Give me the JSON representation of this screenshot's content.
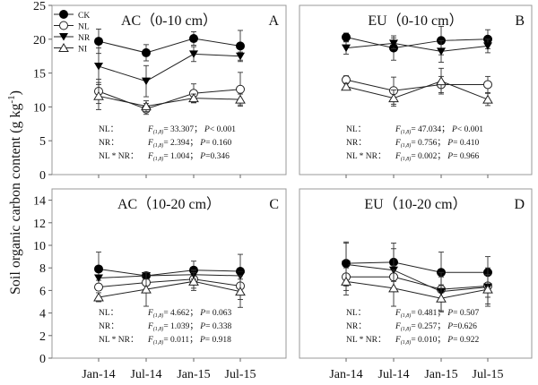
{
  "ylabel": "Soil organic carbon content (g kg",
  "ylabel_sup": "-1",
  "ylabel_end": ")",
  "legend": {
    "position": "top-left of panel A"
  },
  "chart_data": [
    {
      "type": "line",
      "panel": "A",
      "title": "AC（0-10 cm）",
      "letter": "A",
      "categories": [
        "Jan-14",
        "Jul-14",
        "Jan-15",
        "Jul-15"
      ],
      "ylim": [
        0,
        25
      ],
      "yticks": [
        0,
        5,
        10,
        15,
        20,
        25
      ],
      "show_xticklabels": false,
      "legend": true,
      "series": [
        {
          "name": "CK",
          "marker": "filled-circle",
          "values": [
            19.7,
            18.0,
            20.1,
            19.0
          ],
          "errors": [
            1.8,
            1.2,
            1.0,
            2.3
          ]
        },
        {
          "name": "NL",
          "marker": "open-circle",
          "values": [
            12.3,
            9.7,
            12.0,
            12.6
          ],
          "errors": [
            1.8,
            0.8,
            1.4,
            2.5
          ]
        },
        {
          "name": "NR",
          "marker": "filled-triangle-down",
          "values": [
            16.0,
            13.8,
            17.8,
            17.5
          ],
          "errors": [
            2.7,
            2.3,
            1.1,
            0.6
          ]
        },
        {
          "name": "NI",
          "marker": "open-triangle-up",
          "values": [
            11.6,
            10.1,
            11.3,
            11.1
          ],
          "errors": [
            2.0,
            0.8,
            0.6,
            0.8
          ]
        }
      ],
      "stats": [
        {
          "term": "NL：",
          "f": "= 33.307；",
          "p": "< 0.001"
        },
        {
          "term": "NR：",
          "f": "= 2.394；",
          "p": "= 0.160"
        },
        {
          "term": "NL * NR：",
          "f": "= 1.004；",
          "p": "=0.346"
        }
      ]
    },
    {
      "type": "line",
      "panel": "B",
      "title": "EU（0-10 cm）",
      "letter": "B",
      "categories": [
        "Jan-14",
        "Jul-14",
        "Jan-15",
        "Jul-15"
      ],
      "ylim": [
        0,
        25
      ],
      "yticks": [],
      "show_xticklabels": false,
      "legend": false,
      "series": [
        {
          "name": "CK",
          "marker": "filled-circle",
          "values": [
            20.3,
            18.7,
            19.8,
            20.0
          ],
          "errors": [
            0.6,
            1.8,
            2.1,
            1.4
          ]
        },
        {
          "name": "NL",
          "marker": "open-circle",
          "values": [
            14.0,
            12.4,
            13.3,
            13.3
          ],
          "errors": [
            0.6,
            2.0,
            1.2,
            1.2
          ]
        },
        {
          "name": "NR",
          "marker": "filled-triangle-down",
          "values": [
            18.7,
            19.4,
            18.2,
            19.0
          ],
          "errors": [
            0.9,
            0.8,
            1.6,
            1.0
          ]
        },
        {
          "name": "NI",
          "marker": "open-triangle-up",
          "values": [
            13.0,
            11.3,
            13.8,
            11.1
          ],
          "errors": [
            0.5,
            1.2,
            1.9,
            0.9
          ]
        }
      ],
      "stats": [
        {
          "term": "NL：",
          "f": "= 47.034；",
          "p": "< 0.001"
        },
        {
          "term": "NR：",
          "f": "= 0.756；",
          "p": "= 0.410"
        },
        {
          "term": "NL * NR：",
          "f": "= 0.002；",
          "p": "= 0.966"
        }
      ]
    },
    {
      "type": "line",
      "panel": "C",
      "title": "AC（10-20 cm）",
      "letter": "C",
      "categories": [
        "Jan-14",
        "Jul-14",
        "Jan-15",
        "Jul-15"
      ],
      "ylim": [
        0,
        15
      ],
      "yticks": [
        0,
        2,
        4,
        6,
        8,
        10,
        12,
        14
      ],
      "show_xticklabels": true,
      "legend": false,
      "series": [
        {
          "name": "CK",
          "marker": "filled-circle",
          "values": [
            7.9,
            7.3,
            7.8,
            7.7
          ],
          "errors": [
            1.5,
            0.3,
            0.8,
            1.5
          ]
        },
        {
          "name": "NL",
          "marker": "open-circle",
          "values": [
            6.3,
            6.7,
            7.0,
            6.4
          ],
          "errors": [
            0.3,
            0.8,
            0.8,
            1.2
          ]
        },
        {
          "name": "NR",
          "marker": "filled-triangle-down",
          "values": [
            7.1,
            7.3,
            7.4,
            7.3
          ],
          "errors": [
            0.2,
            0.3,
            0.4,
            0.3
          ]
        },
        {
          "name": "NI",
          "marker": "open-triangle-up",
          "values": [
            5.4,
            6.1,
            6.8,
            5.9
          ],
          "errors": [
            0.4,
            1.5,
            0.8,
            1.4
          ]
        }
      ],
      "stats": [
        {
          "term": "NL：",
          "f": "= 4.662；",
          "p": "= 0.063"
        },
        {
          "term": "NR：",
          "f": "= 1.039；",
          "p": "= 0.338"
        },
        {
          "term": "NL * NR：",
          "f": "= 0.011；",
          "p": "= 0.918"
        }
      ]
    },
    {
      "type": "line",
      "panel": "D",
      "title": "EU（10-20 cm）",
      "letter": "D",
      "categories": [
        "Jan-14",
        "Jul-14",
        "Jan-15",
        "Jul-15"
      ],
      "ylim": [
        0,
        15
      ],
      "yticks": [],
      "show_xticklabels": true,
      "legend": false,
      "series": [
        {
          "name": "CK",
          "marker": "filled-circle",
          "values": [
            8.4,
            8.5,
            7.6,
            7.6
          ],
          "errors": [
            1.9,
            1.7,
            1.8,
            1.4
          ]
        },
        {
          "name": "NL",
          "marker": "open-circle",
          "values": [
            7.2,
            7.2,
            6.1,
            6.4
          ],
          "errors": [
            1.2,
            1.0,
            1.1,
            1.0
          ]
        },
        {
          "name": "NR",
          "marker": "filled-triangle-down",
          "values": [
            8.3,
            7.8,
            5.9,
            6.3
          ],
          "errors": [
            1.9,
            1.9,
            1.7,
            1.7
          ]
        },
        {
          "name": "NI",
          "marker": "open-triangle-up",
          "values": [
            6.8,
            6.2,
            5.3,
            6.1
          ],
          "errors": [
            1.2,
            1.6,
            1.2,
            1.3
          ]
        }
      ],
      "stats": [
        {
          "term": "NL：",
          "f": "= 0.481；",
          "p": "= 0.507"
        },
        {
          "term": "NR：",
          "f": "= 0.257；",
          "p": "=0.626"
        },
        {
          "term": "NL * NR：",
          "f": "= 0.010；",
          "p": "= 0.922"
        }
      ]
    }
  ],
  "stat_f_label": "F",
  "stat_f_sub": "(1,8)",
  "stat_p_label": "P"
}
